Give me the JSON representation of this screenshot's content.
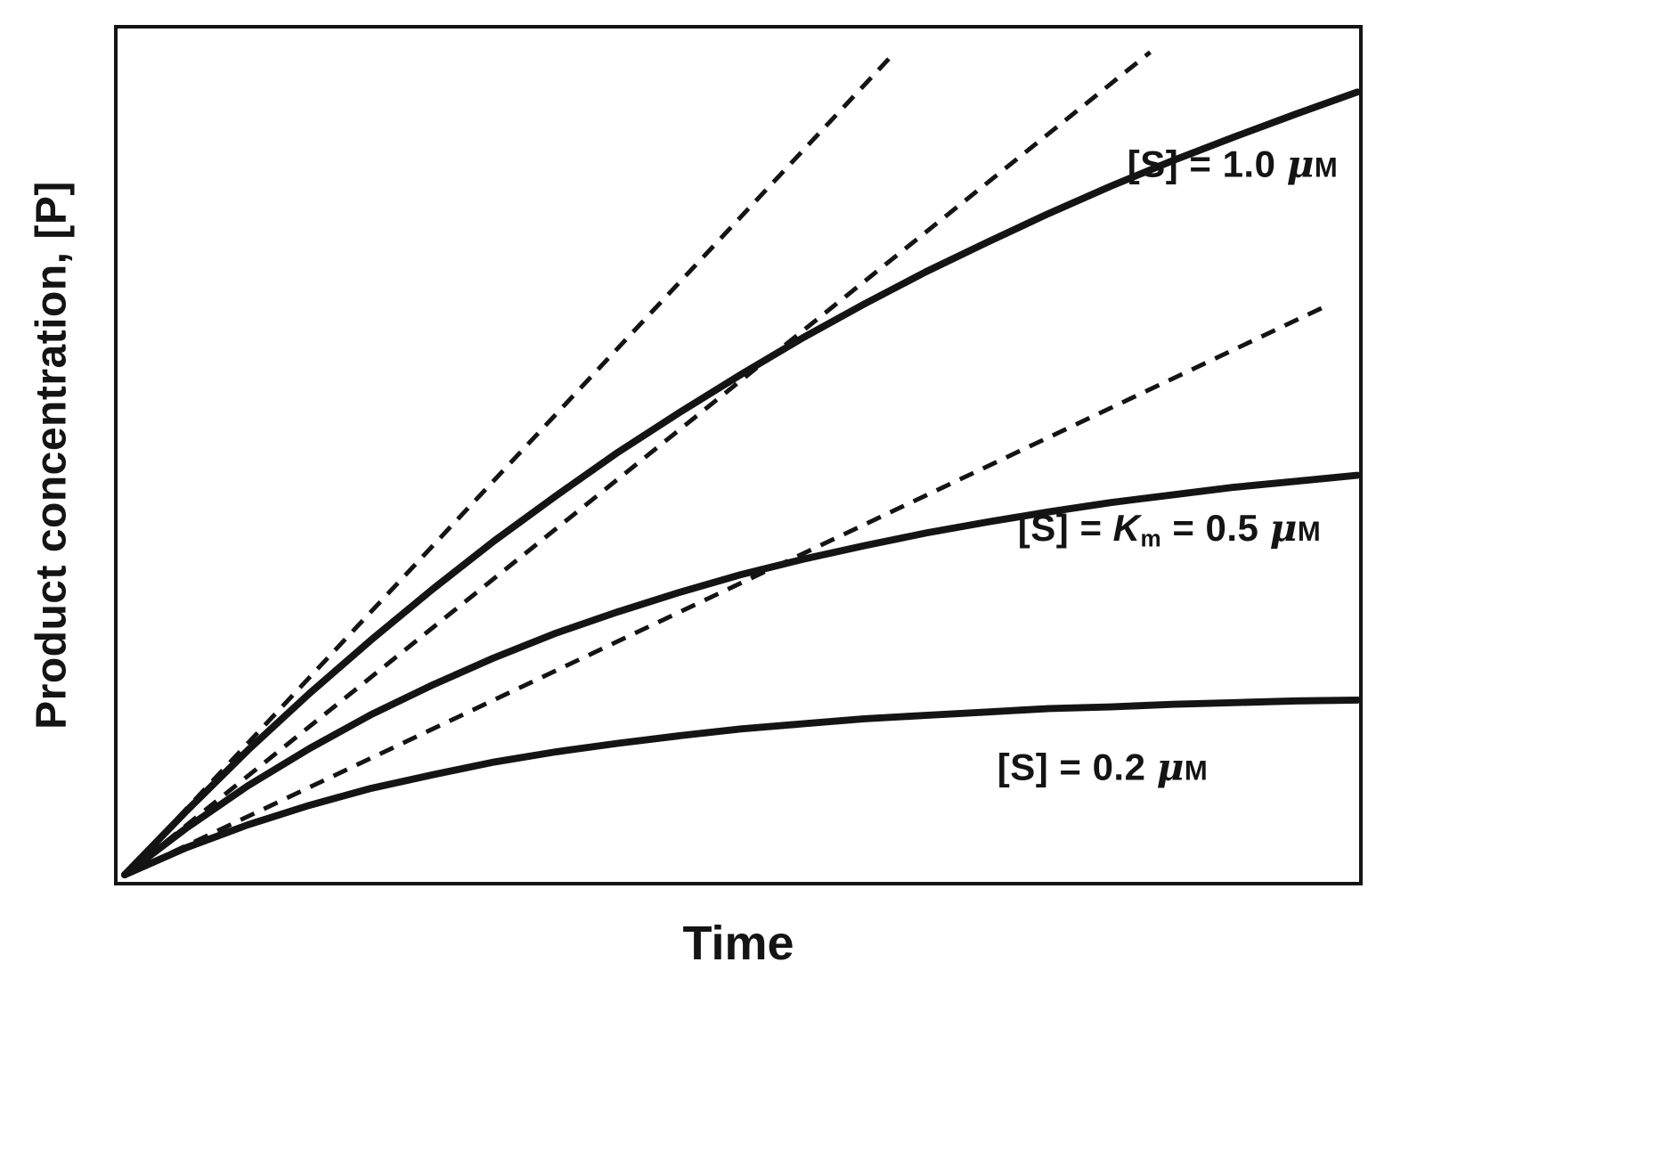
{
  "figure": {
    "ylabel": "Product concentration, [P]",
    "xlabel": "Time",
    "background": "#ffffff",
    "line_color": "#141414",
    "frame": "box",
    "ticks": false,
    "gridlines": false
  },
  "chart_data": {
    "type": "line",
    "description": "Enzyme reaction progress curves: product concentration [P] versus time for three substrate concentrations, each with a dashed initial-rate tangent from the origin.",
    "xlabel": "Time",
    "ylabel": "Product concentration, [P]",
    "x_range": [
      0,
      1
    ],
    "y_range": [
      0,
      1
    ],
    "x_ticks": [],
    "y_ticks": [],
    "legend": "none",
    "x": [
      0,
      0.05,
      0.1,
      0.15,
      0.2,
      0.25,
      0.3,
      0.35,
      0.4,
      0.45,
      0.5,
      0.55,
      0.6,
      0.65,
      0.7,
      0.75,
      0.8,
      0.85,
      0.9,
      0.95,
      1.0
    ],
    "series": [
      {
        "id": "s-1-0",
        "name": "[S] = 1.0 μM",
        "style": "solid",
        "initial_slope": 1.55,
        "y": [
          0,
          0.075,
          0.147,
          0.214,
          0.277,
          0.337,
          0.394,
          0.447,
          0.498,
          0.545,
          0.59,
          0.633,
          0.673,
          0.711,
          0.746,
          0.78,
          0.812,
          0.842,
          0.87,
          0.897,
          0.923
        ],
        "label_pos": [
          0.894,
          0.84
        ],
        "label_parts": [
          {
            "t": "[S] = 1.0 ",
            "s": "plain"
          },
          {
            "t": "μ",
            "s": "mu"
          },
          {
            "t": "M",
            "s": "smallm"
          }
        ]
      },
      {
        "id": "s-km-0-5",
        "name": "[S] = Km = 0.5 μM",
        "style": "solid",
        "initial_slope": 1.17,
        "y": [
          0,
          0.055,
          0.105,
          0.149,
          0.189,
          0.224,
          0.256,
          0.285,
          0.31,
          0.333,
          0.354,
          0.372,
          0.388,
          0.403,
          0.416,
          0.428,
          0.439,
          0.448,
          0.457,
          0.464,
          0.471
        ],
        "label_pos": [
          0.843,
          0.412
        ],
        "label_parts": [
          {
            "t": "[S] = ",
            "s": "plain"
          },
          {
            "t": "K",
            "s": "kitalic"
          },
          {
            "t": "m",
            "s": "sub"
          },
          {
            "t": " = 0.5 ",
            "s": "plain"
          },
          {
            "t": "μ",
            "s": "mu"
          },
          {
            "t": "M",
            "s": "smallm"
          }
        ]
      },
      {
        "id": "s-0-2",
        "name": "[S] = 0.2 μM",
        "style": "solid",
        "initial_slope": 0.69,
        "y": [
          0,
          0.032,
          0.059,
          0.082,
          0.102,
          0.118,
          0.133,
          0.145,
          0.155,
          0.164,
          0.172,
          0.178,
          0.184,
          0.188,
          0.192,
          0.196,
          0.198,
          0.201,
          0.203,
          0.205,
          0.206
        ],
        "label_pos": [
          0.789,
          0.134
        ],
        "label_parts": [
          {
            "t": "[S] = 0.2 ",
            "s": "plain"
          },
          {
            "t": "μ",
            "s": "mu"
          },
          {
            "t": "M",
            "s": "smallm"
          }
        ]
      }
    ],
    "tangents": [
      {
        "id": "t-1-0",
        "for_series": "s-1-0",
        "style": "dashed",
        "from": [
          0,
          0
        ],
        "to": [
          0.625,
          0.97
        ]
      },
      {
        "id": "t-km-0-5",
        "for_series": "s-km-0-5",
        "style": "dashed",
        "from": [
          0,
          0
        ],
        "to": [
          0.832,
          0.97
        ]
      },
      {
        "id": "t-0-2",
        "for_series": "s-0-2",
        "style": "dashed",
        "from": [
          0,
          0
        ],
        "to": [
          0.978,
          0.673
        ]
      }
    ]
  }
}
